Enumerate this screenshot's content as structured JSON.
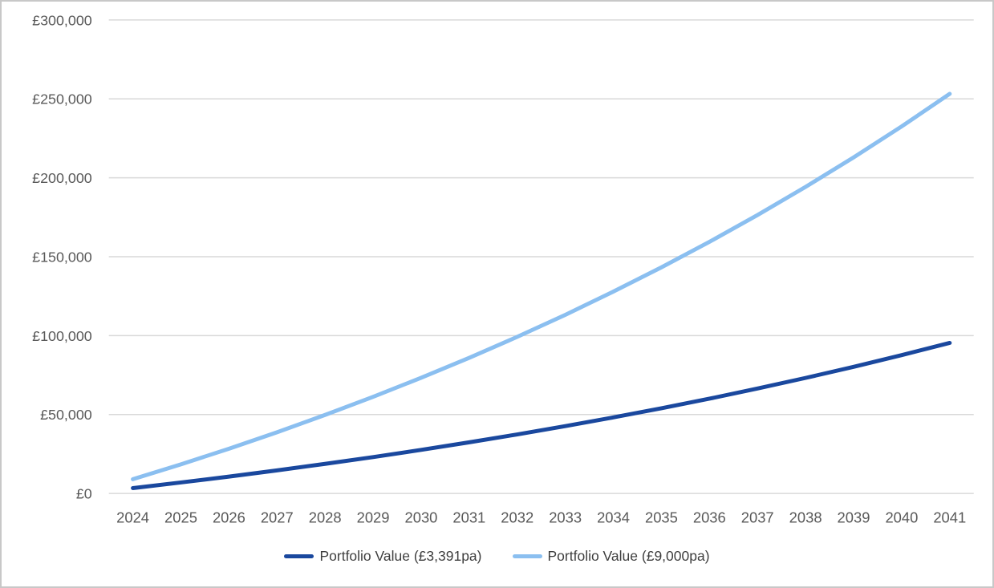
{
  "chart_data": {
    "type": "line",
    "title": "",
    "xlabel": "",
    "ylabel": "",
    "categories": [
      2024,
      2025,
      2026,
      2027,
      2028,
      2029,
      2030,
      2031,
      2032,
      2033,
      2034,
      2035,
      2036,
      2037,
      2038,
      2039,
      2040,
      2041
    ],
    "series": [
      {
        "name": "Portfolio Value (£3,391pa)",
        "color": "#1a489e",
        "values": [
          3391,
          6952,
          10690,
          14616,
          18737,
          23065,
          27610,
          32381,
          37391,
          42652,
          48175,
          53975,
          60065,
          66459,
          73173,
          80223,
          87625,
          95397
        ]
      },
      {
        "name": "Portfolio Value (£9,000pa)",
        "color": "#8bbff0",
        "values": [
          9000,
          18450,
          28373,
          38791,
          49731,
          61217,
          73278,
          85942,
          99239,
          113201,
          127861,
          143254,
          159417,
          176388,
          194207,
          212917,
          232563,
          253192
        ]
      }
    ],
    "ylim": [
      0,
      300000
    ],
    "ytick_step": 50000,
    "ytick_labels": [
      "£0",
      "£50,000",
      "£100,000",
      "£150,000",
      "£200,000",
      "£250,000",
      "£300,000"
    ],
    "grid": true,
    "legend_position": "bottom",
    "colors": {
      "axis_label": "#595959",
      "gridline": "#d9d9d9",
      "legend_text": "#3f3f3f",
      "background": "#ffffff",
      "frame_border": "#c8c8c8"
    }
  }
}
